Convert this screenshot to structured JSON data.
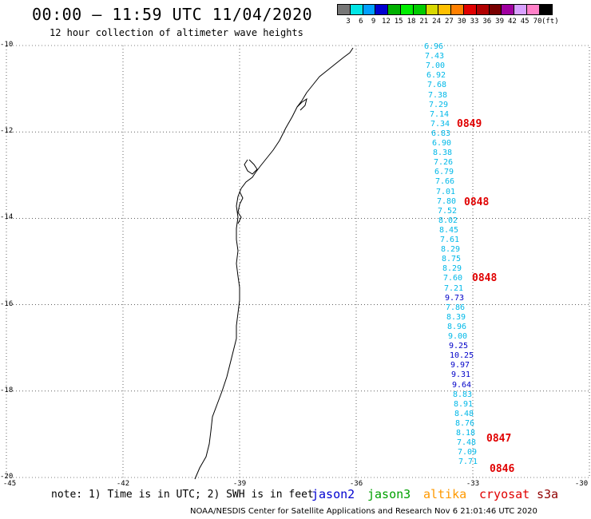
{
  "header": {
    "title": "00:00 – 11:59 UTC 11/04/2020",
    "subtitle": "12 hour collection of altimeter wave heights"
  },
  "scale": {
    "labels": [
      "3",
      "6",
      "9",
      "12",
      "15",
      "18",
      "21",
      "24",
      "27",
      "30",
      "33",
      "36",
      "39",
      "42",
      "45",
      "70",
      "(ft)"
    ],
    "colors": [
      "#777777",
      "#00e5e5",
      "#00a0ff",
      "#0000d0",
      "#00b000",
      "#00ee00",
      "#00cc00",
      "#d8d800",
      "#ffc000",
      "#ff8000",
      "#e00000",
      "#b00000",
      "#780000",
      "#a000a0",
      "#d8a0ff",
      "#ff80c8",
      "#000000"
    ]
  },
  "axes": {
    "lat_labels": [
      "-10",
      "-12",
      "-14",
      "-16",
      "-18",
      "-20"
    ],
    "lon_labels": [
      "-45",
      "-42",
      "-39",
      "-36",
      "-33",
      "-30"
    ]
  },
  "observations": [
    {
      "v": "6.96",
      "c": "#00b8e8"
    },
    {
      "v": "7.43",
      "c": "#00b8e8"
    },
    {
      "v": "7.00",
      "c": "#00b8e8"
    },
    {
      "v": "6.92",
      "c": "#00b8e8"
    },
    {
      "v": "7.68",
      "c": "#00b8e8"
    },
    {
      "v": "7.38",
      "c": "#00b8e8"
    },
    {
      "v": "7.29",
      "c": "#00b8e8"
    },
    {
      "v": "7.14",
      "c": "#00b8e8"
    },
    {
      "v": "7.34",
      "c": "#00b8e8"
    },
    {
      "v": "6.83",
      "c": "#00b8e8"
    },
    {
      "v": "6.90",
      "c": "#00b8e8"
    },
    {
      "v": "8.38",
      "c": "#00b8e8"
    },
    {
      "v": "7.26",
      "c": "#00b8e8"
    },
    {
      "v": "6.79",
      "c": "#00b8e8"
    },
    {
      "v": "7.66",
      "c": "#00b8e8"
    },
    {
      "v": "7.01",
      "c": "#00b8e8"
    },
    {
      "v": "7.80",
      "c": "#00b8e8"
    },
    {
      "v": "7.52",
      "c": "#00b8e8"
    },
    {
      "v": "8.02",
      "c": "#00b8e8"
    },
    {
      "v": "8.45",
      "c": "#00b8e8"
    },
    {
      "v": "7.61",
      "c": "#00b8e8"
    },
    {
      "v": "8.29",
      "c": "#00b8e8"
    },
    {
      "v": "8.75",
      "c": "#00b8e8"
    },
    {
      "v": "8.29",
      "c": "#00b8e8"
    },
    {
      "v": "7.60",
      "c": "#00b8e8"
    },
    {
      "v": "7.21",
      "c": "#00b8e8"
    },
    {
      "v": "9.73",
      "c": "#0000c8"
    },
    {
      "v": "7.86",
      "c": "#00b8e8"
    },
    {
      "v": "8.39",
      "c": "#00b8e8"
    },
    {
      "v": "8.96",
      "c": "#00b8e8"
    },
    {
      "v": "9.00",
      "c": "#00b8e8"
    },
    {
      "v": "9.25",
      "c": "#0000c8"
    },
    {
      "v": "10.25",
      "c": "#0000c8"
    },
    {
      "v": "9.97",
      "c": "#0000c8"
    },
    {
      "v": "9.31",
      "c": "#0000c8"
    },
    {
      "v": "9.64",
      "c": "#0000c8"
    },
    {
      "v": "8.83",
      "c": "#00b8e8"
    },
    {
      "v": "8.91",
      "c": "#00b8e8"
    },
    {
      "v": "8.48",
      "c": "#00b8e8"
    },
    {
      "v": "8.76",
      "c": "#00b8e8"
    },
    {
      "v": "8.18",
      "c": "#00b8e8"
    },
    {
      "v": "7.48",
      "c": "#00b8e8"
    },
    {
      "v": "7.09",
      "c": "#00b8e8"
    },
    {
      "v": "7.71",
      "c": "#00b8e8"
    }
  ],
  "pass_labels": [
    "0849",
    "0848",
    "0848",
    "0847",
    "0846"
  ],
  "footer": {
    "note": "note: 1) Time is in UTC; 2) SWH is in feet",
    "satellites": [
      {
        "name": "jason2",
        "color": "#0000d0"
      },
      {
        "name": "jason3",
        "color": "#00a000"
      },
      {
        "name": "altika",
        "color": "#ff9900"
      },
      {
        "name": "cryosat",
        "color": "#e00000"
      },
      {
        "name": "s3a",
        "color": "#900000"
      }
    ],
    "credit": "NOAA/NESDIS Center for Satellite Applications and Research    Nov  6 21:01:46 UTC 2020"
  }
}
